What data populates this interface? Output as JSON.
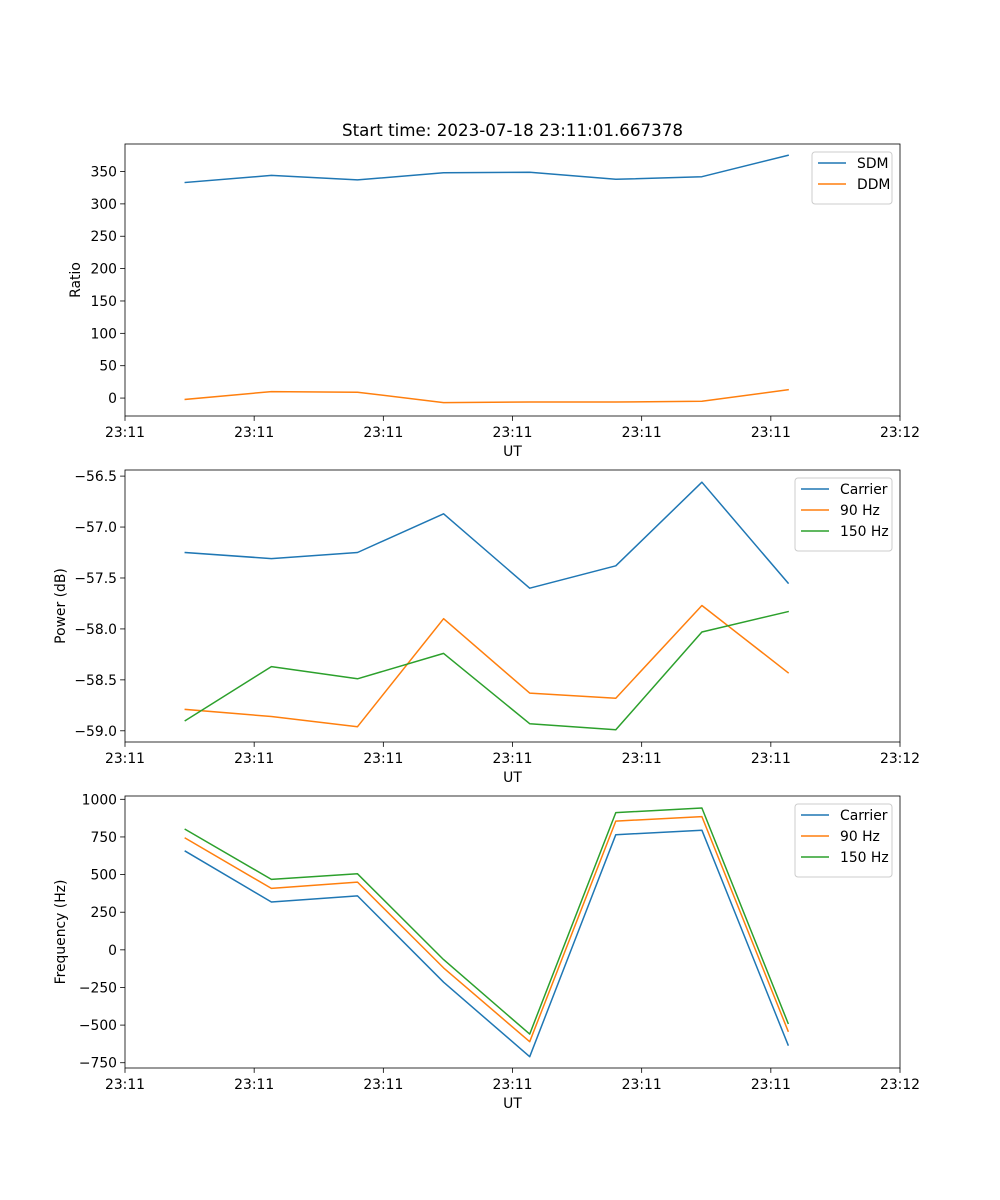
{
  "figure": {
    "title": "Start time: 2023-07-18 23:11:01.667378"
  },
  "colors": {
    "blue": "#1f77b4",
    "orange": "#ff7f0e",
    "green": "#2ca02c",
    "frame": "#000000",
    "legend_edge": "#cccccc"
  },
  "chart_data": [
    {
      "type": "line",
      "title": "Start time: 2023-07-18 23:11:01.667378",
      "xlabel": "UT",
      "ylabel": "Ratio",
      "xlim": [
        -0.7,
        8.3
      ],
      "ylim": [
        -27.7,
        392.5
      ],
      "x": [
        0,
        1,
        2,
        3,
        4,
        5,
        6,
        7
      ],
      "xticks": [
        -0.7,
        0.8,
        2.3,
        3.8,
        5.3,
        6.8,
        8.3
      ],
      "xtick_labels": [
        "23:11",
        "23:11",
        "23:11",
        "23:11",
        "23:11",
        "23:11",
        "23:12"
      ],
      "yticks": [
        0,
        50,
        100,
        150,
        200,
        250,
        300,
        350
      ],
      "ytick_labels": [
        "0",
        "50",
        "100",
        "150",
        "200",
        "250",
        "300",
        "350"
      ],
      "legend": "upper right",
      "series": [
        {
          "name": "SDM",
          "color": "#1f77b4",
          "values": [
            333,
            344,
            337,
            348,
            349,
            338,
            342,
            375
          ]
        },
        {
          "name": "DDM",
          "color": "#ff7f0e",
          "values": [
            -2,
            10,
            9,
            -7,
            -6,
            -6,
            -5,
            13
          ]
        }
      ]
    },
    {
      "type": "line",
      "xlabel": "UT",
      "ylabel": "Power (dB)",
      "xlim": [
        -0.7,
        8.3
      ],
      "ylim": [
        -59.11,
        -56.44
      ],
      "x": [
        0,
        1,
        2,
        3,
        4,
        5,
        6,
        7
      ],
      "xticks": [
        -0.7,
        0.8,
        2.3,
        3.8,
        5.3,
        6.8,
        8.3
      ],
      "xtick_labels": [
        "23:11",
        "23:11",
        "23:11",
        "23:11",
        "23:11",
        "23:11",
        "23:12"
      ],
      "yticks": [
        -59.0,
        -58.5,
        -58.0,
        -57.5,
        -57.0,
        -56.5
      ],
      "ytick_labels": [
        "−59.0",
        "−58.5",
        "−58.0",
        "−57.5",
        "−57.0",
        "−56.5"
      ],
      "legend": "upper right",
      "series": [
        {
          "name": "Carrier",
          "color": "#1f77b4",
          "values": [
            -57.25,
            -57.31,
            -57.25,
            -56.87,
            -57.6,
            -57.38,
            -56.56,
            -57.55
          ]
        },
        {
          "name": "90 Hz",
          "color": "#ff7f0e",
          "values": [
            -58.79,
            -58.86,
            -58.96,
            -57.9,
            -58.63,
            -58.68,
            -57.77,
            -58.43
          ]
        },
        {
          "name": "150 Hz",
          "color": "#2ca02c",
          "values": [
            -58.9,
            -58.37,
            -58.49,
            -58.24,
            -58.93,
            -58.99,
            -58.03,
            -57.83
          ]
        }
      ]
    },
    {
      "type": "line",
      "xlabel": "UT",
      "ylabel": "Frequency (Hz)",
      "xlim": [
        -0.7,
        8.3
      ],
      "ylim": [
        -785,
        1022
      ],
      "x": [
        0,
        1,
        2,
        3,
        4,
        5,
        6,
        7
      ],
      "xticks": [
        -0.7,
        0.8,
        2.3,
        3.8,
        5.3,
        6.8,
        8.3
      ],
      "xtick_labels": [
        "23:11",
        "23:11",
        "23:11",
        "23:11",
        "23:11",
        "23:11",
        "23:12"
      ],
      "yticks": [
        -750,
        -500,
        -250,
        0,
        250,
        500,
        750,
        1000
      ],
      "ytick_labels": [
        "−750",
        "−500",
        "−250",
        "0",
        "250",
        "500",
        "750",
        "1000"
      ],
      "legend": "upper right",
      "series": [
        {
          "name": "Carrier",
          "color": "#1f77b4",
          "values": [
            655,
            318,
            358,
            -215,
            -710,
            765,
            795,
            -632
          ]
        },
        {
          "name": "90 Hz",
          "color": "#ff7f0e",
          "values": [
            742,
            408,
            450,
            -120,
            -610,
            855,
            885,
            -540
          ]
        },
        {
          "name": "150 Hz",
          "color": "#2ca02c",
          "values": [
            800,
            468,
            505,
            -65,
            -560,
            912,
            942,
            -488
          ]
        }
      ]
    }
  ]
}
